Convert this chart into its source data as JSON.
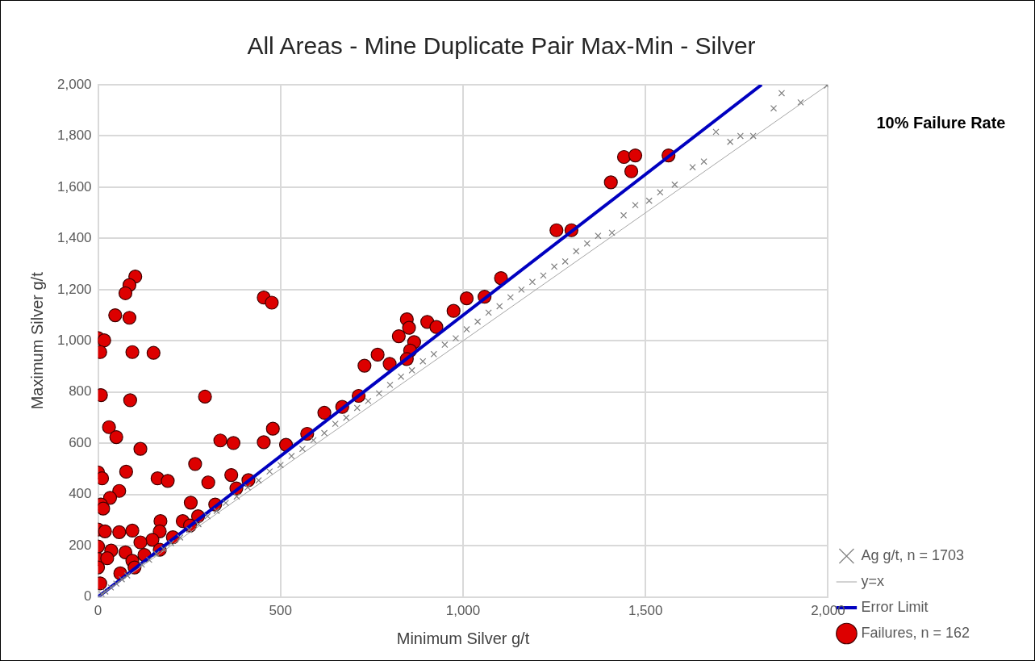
{
  "chart_data": {
    "type": "scatter",
    "title": "All Areas - Mine Duplicate Pair Max-Min - Silver",
    "xlabel": "Minimum Silver g/t",
    "ylabel": "Maximum Silver g/t",
    "annotations": [
      "10% Failure Rate"
    ],
    "xlim": [
      0,
      2000
    ],
    "ylim": [
      0,
      2000
    ],
    "xticks": [
      0,
      500,
      {
        "value": 1000,
        "label": "1,000"
      },
      {
        "value": 1500,
        "label": "1,500"
      },
      {
        "value": 2000,
        "label": "2,000"
      }
    ],
    "yticks": [
      0,
      200,
      400,
      600,
      800,
      {
        "value": 1000,
        "label": "1,000"
      },
      {
        "value": 1200,
        "label": "1,200"
      },
      {
        "value": 1400,
        "label": "1,400"
      },
      {
        "value": 1600,
        "label": "1,600"
      },
      {
        "value": 1800,
        "label": "1,800"
      },
      {
        "value": 2000,
        "label": "2,000"
      }
    ],
    "grid": true,
    "legend": "bottom right",
    "series": [
      {
        "name": "Ag g/t, n = 1703",
        "marker": "cross",
        "color": "#808080",
        "x": [
          10,
          20,
          35,
          50,
          65,
          80,
          120,
          140,
          160,
          180,
          200,
          225,
          250,
          275,
          300,
          325,
          350,
          380,
          410,
          440,
          470,
          500,
          530,
          560,
          590,
          620,
          650,
          680,
          710,
          740,
          770,
          800,
          830,
          860,
          890,
          920,
          950,
          980,
          1010,
          1040,
          1070,
          1100,
          1130,
          1160,
          1190,
          1220,
          1250,
          1280,
          1310,
          1340,
          1370,
          1408,
          1440,
          1472,
          1510,
          1540,
          1580,
          1629,
          1660,
          1693,
          1732,
          1760,
          1795,
          1851,
          1873,
          1925,
          1997
        ],
        "values": [
          11,
          21,
          37,
          52,
          69,
          84,
          126,
          145,
          168,
          187,
          210,
          232,
          262,
          284,
          315,
          336,
          367,
          392,
          428,
          455,
          490,
          515,
          550,
          578,
          612,
          640,
          676,
          700,
          738,
          765,
          795,
          828,
          860,
          885,
          920,
          948,
          985,
          1010,
          1045,
          1075,
          1110,
          1135,
          1170,
          1200,
          1230,
          1255,
          1290,
          1310,
          1350,
          1380,
          1410,
          1422,
          1490,
          1530,
          1547,
          1580,
          1610,
          1678,
          1700,
          1816,
          1777,
          1800,
          1800,
          1908,
          1967,
          1931,
          1997
        ]
      },
      {
        "name": "y=x",
        "type": "line",
        "marker": "none",
        "color": "#a6a6a6",
        "x": [
          0,
          2000
        ],
        "values": [
          0,
          2000
        ]
      },
      {
        "name": "Error Limit",
        "type": "line",
        "marker": "none",
        "color": "#0000c0",
        "x": [
          0,
          1818
        ],
        "values": [
          0,
          2000
        ]
      },
      {
        "name": "Failures, n = 162",
        "marker": "circle",
        "color": "#dd0000",
        "x": [
          102,
          86,
          75,
          47,
          86,
          0,
          17,
          6,
          94,
          152,
          8,
          88,
          293,
          454,
          476,
          30,
          50,
          116,
          335,
          371,
          266,
          479,
          454,
          515,
          620,
          669,
          573,
          0,
          11,
          77,
          163,
          191,
          302,
          365,
          412,
          379,
          58,
          33,
          8,
          14,
          254,
          274,
          321,
          0,
          19,
          58,
          94,
          171,
          169,
          232,
          205,
          252,
          149,
          116,
          0,
          36,
          75,
          127,
          169,
          0,
          25,
          94,
          0,
          61,
          100,
          6,
          1104,
          1010,
          1059,
          974,
          846,
          902,
          927,
          852,
          824,
          866,
          855,
          846,
          766,
          799,
          730,
          714,
          1441,
          1472,
          1461,
          1405,
          1563,
          1256,
          1297
        ],
        "values": [
          1251,
          1218,
          1186,
          1100,
          1090,
          1011,
          1002,
          956,
          956,
          953,
          788,
          768,
          782,
          1169,
          1149,
          663,
          624,
          578,
          611,
          601,
          519,
          657,
          604,
          594,
          719,
          742,
          637,
          486,
          463,
          489,
          463,
          453,
          447,
          476,
          456,
          424,
          414,
          387,
          361,
          345,
          368,
          315,
          361,
          263,
          256,
          253,
          259,
          296,
          256,
          296,
          233,
          279,
          223,
          213,
          197,
          181,
          174,
          164,
          184,
          148,
          151,
          141,
          115,
          92,
          115,
          53,
          1245,
          1166,
          1172,
          1117,
          1084,
          1074,
          1054,
          1051,
          1018,
          995,
          962,
          929,
          946,
          910,
          903,
          785,
          1718,
          1724,
          1662,
          1619,
          1724,
          1432,
          1432
        ]
      }
    ]
  }
}
